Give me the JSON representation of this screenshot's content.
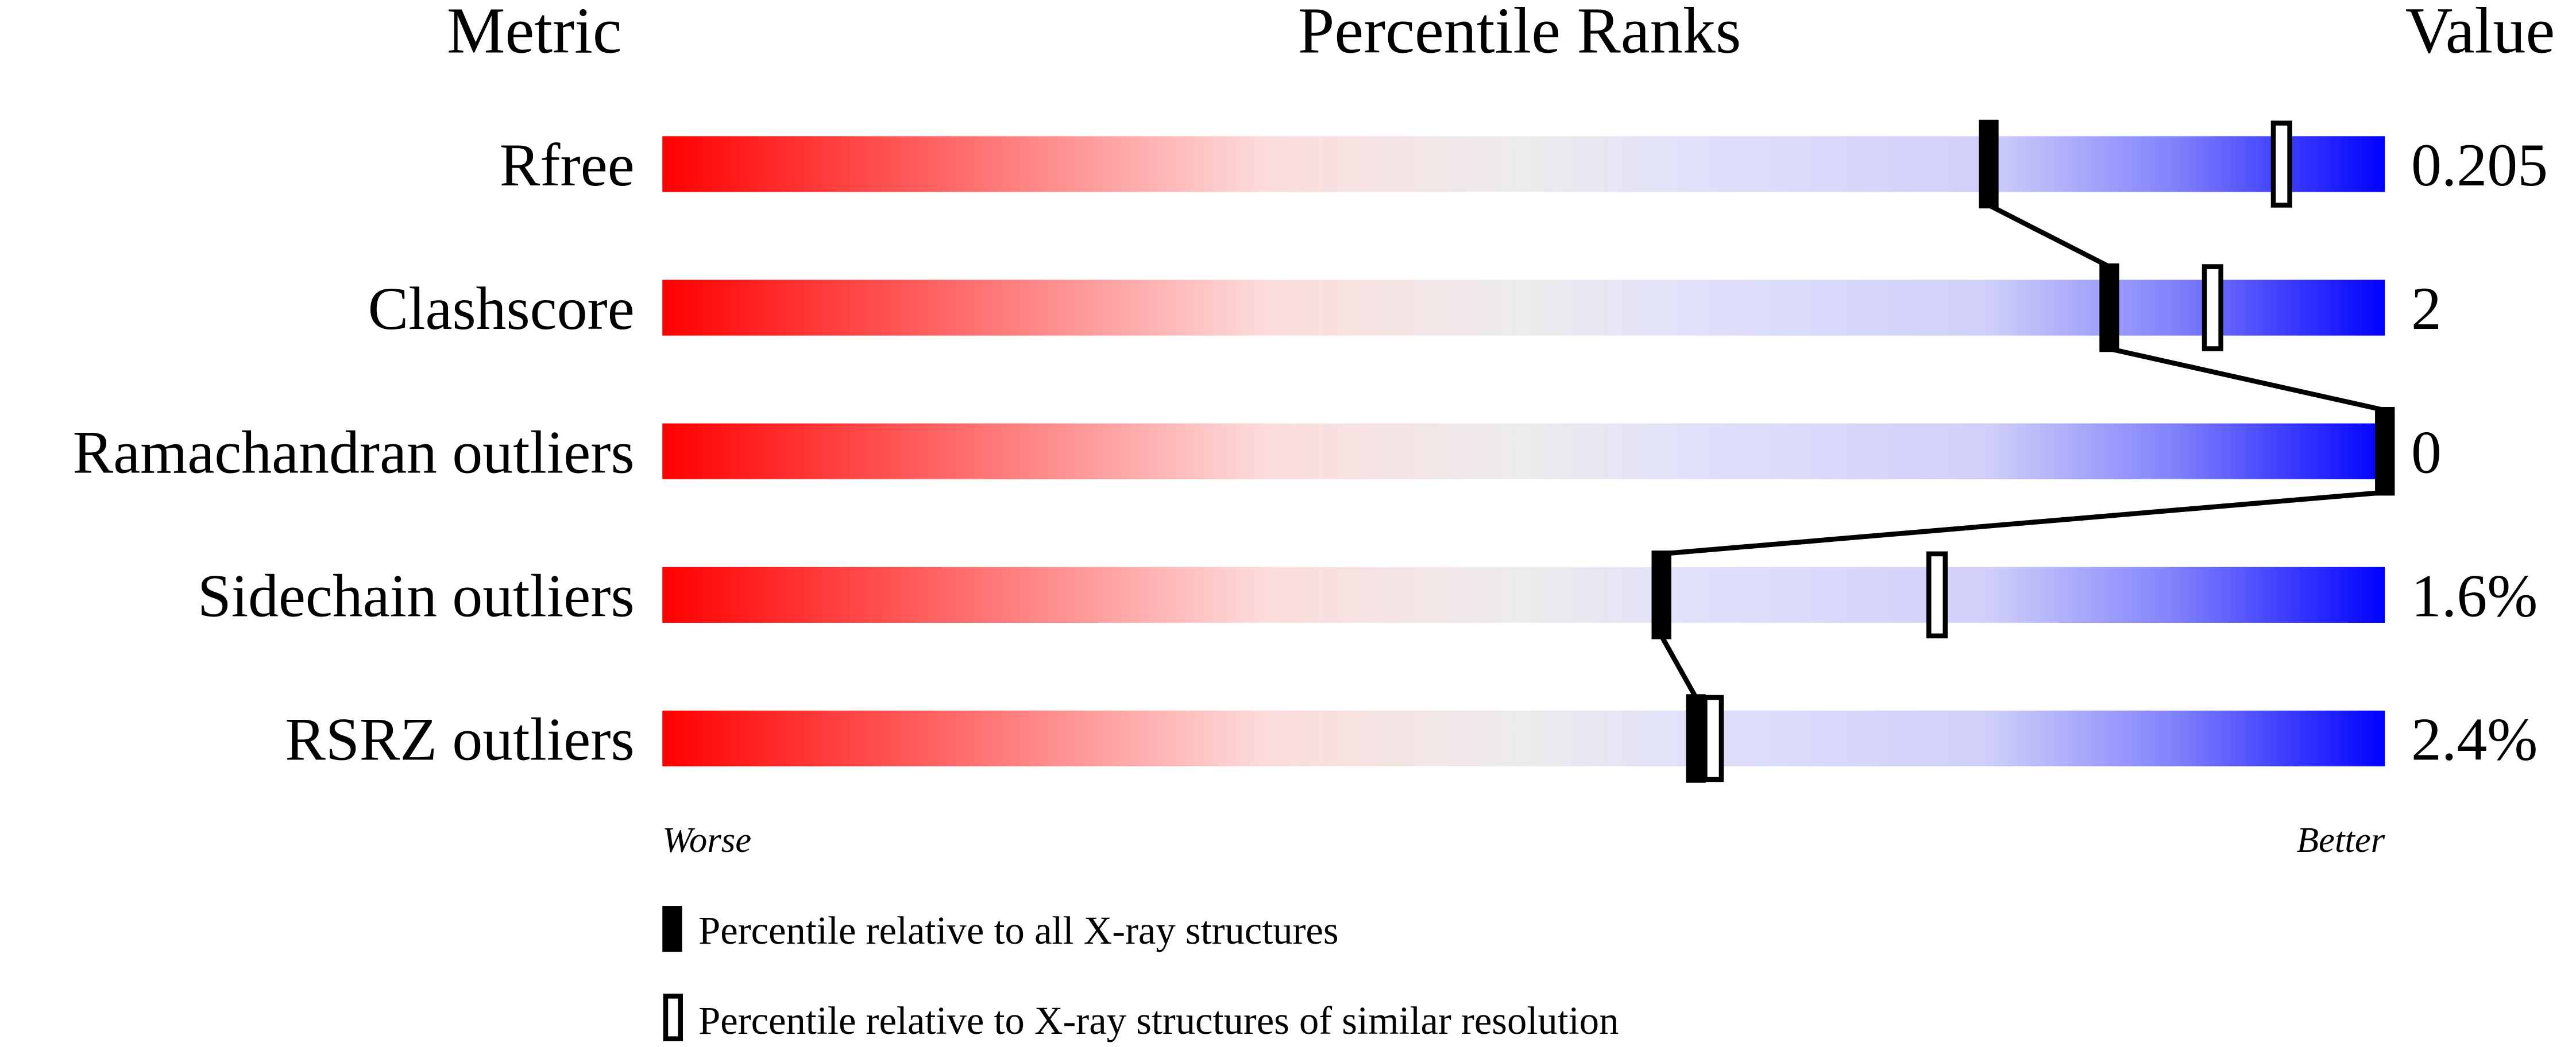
{
  "chart_data": {
    "type": "percentile-bar",
    "headers": {
      "metric": "Metric",
      "ranks": "Percentile Ranks",
      "value": "Value"
    },
    "xlim": [
      0,
      100
    ],
    "axis_labels": {
      "left": "Worse",
      "right": "Better"
    },
    "colors": {
      "worse": "#ff0000",
      "middle": "#eeeeee",
      "better": "#0000ff"
    },
    "rows": [
      {
        "metric": "Rfree",
        "value": "0.205",
        "percentile_all": 77,
        "percentile_similar": 94
      },
      {
        "metric": "Clashscore",
        "value": "2",
        "percentile_all": 84,
        "percentile_similar": 90
      },
      {
        "metric": "Ramachandran outliers",
        "value": "0",
        "percentile_all": 100,
        "percentile_similar": null
      },
      {
        "metric": "Sidechain outliers",
        "value": "1.6%",
        "percentile_all": 58,
        "percentile_similar": 74
      },
      {
        "metric": "RSRZ outliers",
        "value": "2.4%",
        "percentile_all": 60,
        "percentile_similar": 61
      }
    ],
    "legend": [
      {
        "marker": "filled",
        "label": "Percentile relative to all X-ray structures"
      },
      {
        "marker": "open",
        "label": "Percentile relative to X-ray structures of similar resolution"
      }
    ]
  }
}
